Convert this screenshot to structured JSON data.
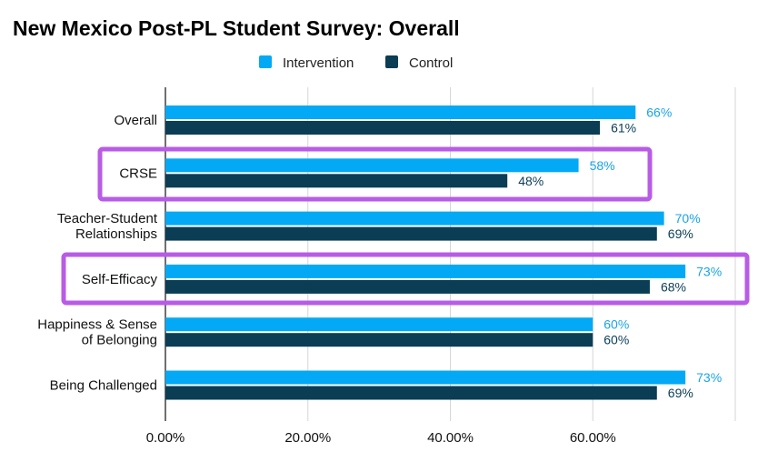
{
  "chart_data": {
    "type": "bar",
    "orientation": "horizontal",
    "title": "New Mexico Post-PL Student Survey: Overall",
    "xlabel": "",
    "ylabel": "",
    "xlim": [
      0,
      0.8
    ],
    "x_ticks": [
      "0.00%",
      "20.00%",
      "40.00%",
      "60.00%"
    ],
    "x_tick_values": [
      0,
      0.2,
      0.4,
      0.6
    ],
    "grid": true,
    "legend_position": "top",
    "categories": [
      [
        "Overall"
      ],
      [
        "CRSE"
      ],
      [
        "Teacher-Student",
        "Relationships"
      ],
      [
        "Self-Efficacy"
      ],
      [
        "Happiness & Sense",
        "of Belonging"
      ],
      [
        "Being Challenged"
      ]
    ],
    "series": [
      {
        "name": "Intervention",
        "color": "#03A9F4",
        "label_color": "#1AA3E8",
        "values": [
          0.66,
          0.58,
          0.7,
          0.73,
          0.6,
          0.73
        ],
        "labels": [
          "66%",
          "58%",
          "70%",
          "73%",
          "60%",
          "73%"
        ]
      },
      {
        "name": "Control",
        "color": "#0B3D55",
        "label_color": "#0B3D55",
        "values": [
          0.61,
          0.48,
          0.69,
          0.68,
          0.6,
          0.69
        ],
        "labels": [
          "61%",
          "48%",
          "69%",
          "68%",
          "60%",
          "69%"
        ]
      }
    ],
    "highlighted_categories": [
      1,
      3
    ],
    "highlight_color": "#B85CE6"
  }
}
